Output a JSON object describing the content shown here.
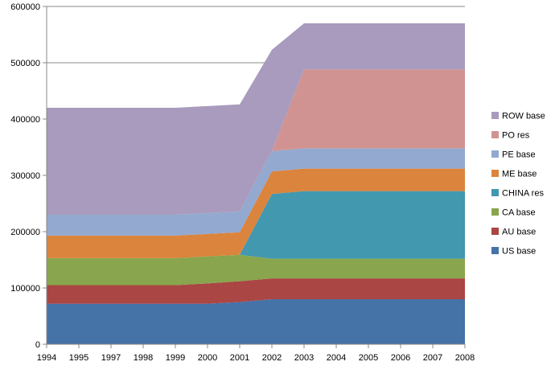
{
  "chart_data": {
    "type": "area",
    "stacked": true,
    "x": [
      1994,
      1995,
      1997,
      1998,
      1999,
      2000,
      2001,
      2002,
      2003,
      2004,
      2005,
      2006,
      2007,
      2008
    ],
    "ylim": [
      0,
      600000
    ],
    "yticks": [
      0,
      100000,
      200000,
      300000,
      400000,
      500000,
      600000
    ],
    "grid": "horizontal",
    "legend_position": "right",
    "series": [
      {
        "name": "US base",
        "color": "#4572A7",
        "values": [
          72000,
          72000,
          72000,
          72000,
          72000,
          72000,
          75000,
          80000,
          80000,
          80000,
          80000,
          80000,
          80000,
          80000
        ]
      },
      {
        "name": "AU base",
        "color": "#AA4643",
        "values": [
          33000,
          33000,
          33000,
          33000,
          33000,
          36000,
          37000,
          37000,
          37000,
          37000,
          37000,
          37000,
          37000,
          37000
        ]
      },
      {
        "name": "CA base",
        "color": "#89A54E",
        "values": [
          48000,
          48000,
          48000,
          48000,
          48000,
          48000,
          47000,
          35000,
          35000,
          35000,
          35000,
          35000,
          35000,
          35000
        ]
      },
      {
        "name": "CHINA res",
        "color": "#4198AF",
        "values": [
          0,
          0,
          0,
          0,
          0,
          0,
          0,
          115000,
          120000,
          120000,
          120000,
          120000,
          120000,
          120000
        ]
      },
      {
        "name": "ME base",
        "color": "#DB843D",
        "values": [
          40000,
          40000,
          40000,
          40000,
          40000,
          40000,
          40000,
          40000,
          40000,
          40000,
          40000,
          40000,
          40000,
          40000
        ]
      },
      {
        "name": "PE base",
        "color": "#93A9CF",
        "values": [
          37000,
          37000,
          37000,
          37000,
          37000,
          37000,
          37000,
          36000,
          36000,
          36000,
          36000,
          36000,
          36000,
          36000
        ]
      },
      {
        "name": "PO res",
        "color": "#D19392",
        "values": [
          0,
          0,
          0,
          0,
          0,
          0,
          0,
          0,
          140000,
          140000,
          140000,
          140000,
          140000,
          140000
        ]
      },
      {
        "name": "ROW base",
        "color": "#A99BBD",
        "values": [
          190000,
          190000,
          190000,
          190000,
          190000,
          190000,
          190000,
          180000,
          82000,
          82000,
          82000,
          82000,
          82000,
          82000
        ]
      }
    ],
    "legend_order": [
      "ROW base",
      "PO res",
      "PE base",
      "ME base",
      "CHINA res",
      "CA base",
      "AU base",
      "US base"
    ]
  }
}
